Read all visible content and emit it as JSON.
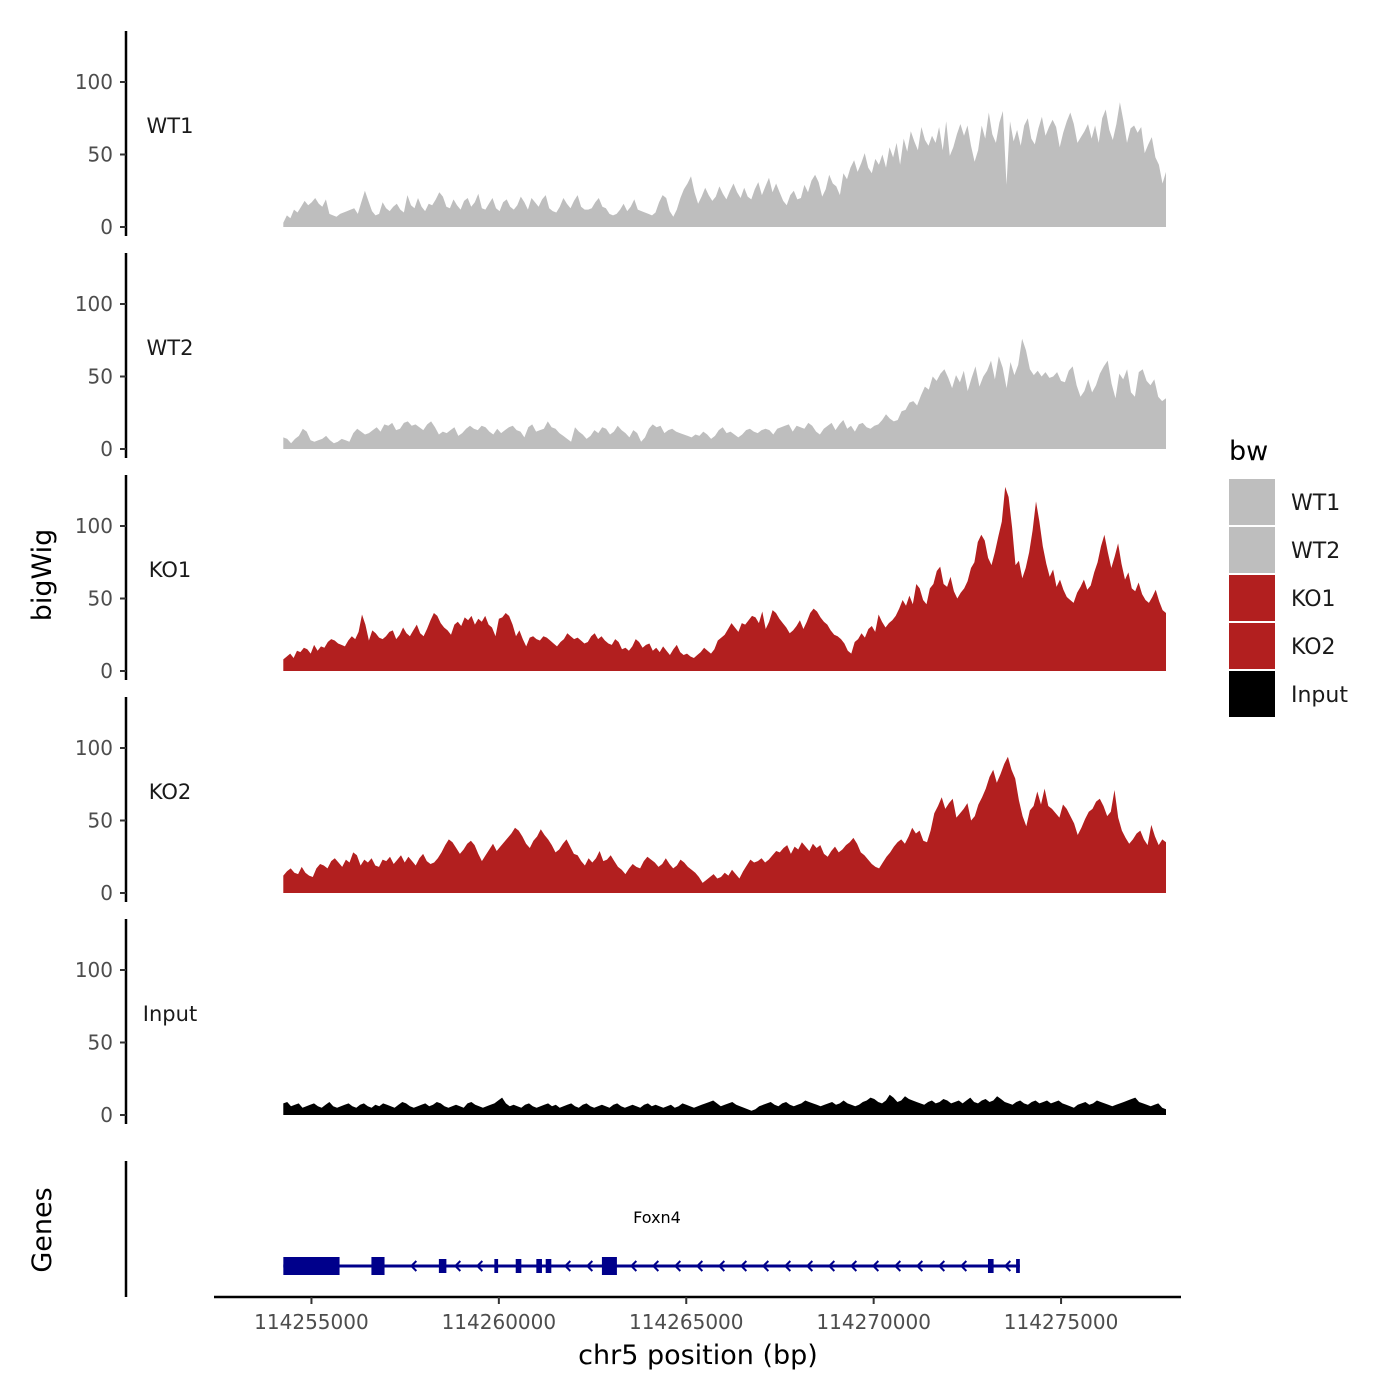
{
  "chart_data": {
    "type": "area",
    "title": "",
    "ylabel": "bigWig",
    "xlabel": "chr5 position (bp)",
    "gene_panel_label": "Genes",
    "xlim": [
      114252400,
      114278200
    ],
    "data_range": [
      114254250,
      114277800
    ],
    "ylim": [
      0,
      130
    ],
    "yticks": [
      0,
      50,
      100
    ],
    "xticks": [
      114255000,
      114260000,
      114265000,
      114270000,
      114275000
    ],
    "xtick_labels": [
      "114255000",
      "114260000",
      "114265000",
      "114270000",
      "114275000"
    ],
    "legend": {
      "title": "bw",
      "position": "right",
      "entries": [
        {
          "name": "WT1",
          "color": "#bebebe"
        },
        {
          "name": "WT2",
          "color": "#bebebe"
        },
        {
          "name": "KO1",
          "color": "#b21f1f"
        },
        {
          "name": "KO2",
          "color": "#b21f1f"
        },
        {
          "name": "Input",
          "color": "#000000"
        }
      ]
    },
    "series": [
      {
        "name": "WT1",
        "color": "#bebebe",
        "values": [
          3,
          8,
          6,
          12,
          10,
          14,
          18,
          15,
          17,
          20,
          16,
          14,
          19,
          9,
          8,
          7,
          9,
          10,
          11,
          12,
          13,
          9,
          17,
          25,
          18,
          11,
          8,
          9,
          17,
          13,
          11,
          14,
          16,
          12,
          10,
          22,
          15,
          13,
          20,
          14,
          11,
          16,
          15,
          19,
          24,
          21,
          14,
          13,
          19,
          15,
          12,
          18,
          20,
          14,
          17,
          23,
          13,
          12,
          16,
          20,
          13,
          11,
          17,
          19,
          14,
          12,
          15,
          21,
          17,
          12,
          20,
          17,
          14,
          19,
          22,
          13,
          11,
          10,
          14,
          20,
          16,
          13,
          18,
          22,
          14,
          12,
          12,
          13,
          17,
          20,
          14,
          13,
          9,
          8,
          9,
          12,
          16,
          11,
          14,
          19,
          12,
          11,
          10,
          9,
          8,
          10,
          17,
          22,
          20,
          11,
          7,
          12,
          20,
          26,
          30,
          35,
          24,
          16,
          21,
          27,
          22,
          18,
          21,
          28,
          23,
          19,
          25,
          30,
          24,
          20,
          27,
          21,
          19,
          26,
          31,
          22,
          28,
          34,
          24,
          30,
          24,
          18,
          15,
          22,
          25,
          19,
          20,
          29,
          24,
          32,
          36,
          31,
          21,
          26,
          36,
          30,
          28,
          22,
          37,
          33,
          41,
          46,
          38,
          44,
          51,
          41,
          37,
          47,
          43,
          50,
          41,
          55,
          48,
          58,
          43,
          61,
          52,
          66,
          59,
          53,
          69,
          60,
          56,
          63,
          58,
          69,
          53,
          73,
          49,
          55,
          64,
          71,
          63,
          70,
          56,
          45,
          53,
          70,
          61,
          79,
          64,
          58,
          72,
          80,
          29,
          73,
          59,
          67,
          56,
          70,
          75,
          61,
          57,
          68,
          76,
          63,
          69,
          74,
          69,
          55,
          65,
          73,
          79,
          71,
          58,
          62,
          66,
          71,
          61,
          70,
          58,
          75,
          81,
          67,
          60,
          71,
          86,
          73,
          58,
          68,
          70,
          65,
          69,
          51,
          57,
          62,
          48,
          43,
          30,
          38
        ]
      },
      {
        "name": "WT2",
        "color": "#bebebe",
        "values": [
          8,
          7,
          4,
          7,
          9,
          14,
          12,
          6,
          5,
          6,
          7,
          9,
          6,
          4,
          5,
          7,
          6,
          5,
          11,
          14,
          12,
          10,
          11,
          13,
          15,
          12,
          17,
          16,
          18,
          13,
          14,
          18,
          19,
          16,
          17,
          15,
          13,
          17,
          19,
          15,
          10,
          12,
          11,
          13,
          15,
          9,
          11,
          14,
          16,
          14,
          13,
          16,
          15,
          12,
          10,
          14,
          11,
          13,
          15,
          16,
          13,
          12,
          8,
          15,
          17,
          12,
          13,
          14,
          19,
          15,
          14,
          11,
          9,
          7,
          5,
          15,
          12,
          10,
          7,
          9,
          13,
          11,
          15,
          14,
          10,
          12,
          16,
          13,
          11,
          8,
          13,
          11,
          5,
          8,
          14,
          17,
          15,
          16,
          11,
          13,
          14,
          12,
          11,
          10,
          9,
          8,
          10,
          9,
          12,
          10,
          7,
          9,
          13,
          15,
          11,
          12,
          10,
          8,
          10,
          13,
          14,
          12,
          11,
          13,
          14,
          13,
          10,
          14,
          15,
          16,
          17,
          12,
          16,
          15,
          14,
          18,
          16,
          12,
          10,
          14,
          16,
          18,
          13,
          17,
          20,
          14,
          16,
          12,
          17,
          18,
          15,
          14,
          16,
          17,
          20,
          24,
          21,
          19,
          20,
          26,
          27,
          32,
          33,
          30,
          37,
          43,
          41,
          50,
          47,
          52,
          55,
          49,
          42,
          51,
          46,
          54,
          40,
          49,
          57,
          43,
          50,
          54,
          61,
          48,
          64,
          56,
          42,
          60,
          51,
          58,
          76,
          68,
          55,
          51,
          54,
          50,
          53,
          49,
          50,
          53,
          47,
          46,
          54,
          57,
          44,
          36,
          40,
          48,
          39,
          44,
          52,
          57,
          61,
          45,
          35,
          52,
          48,
          55,
          39,
          36,
          53,
          55,
          47,
          44,
          48,
          36,
          33,
          35
        ]
      },
      {
        "name": "KO1",
        "color": "#b21f1f",
        "values": [
          8,
          10,
          12,
          9,
          14,
          13,
          16,
          15,
          12,
          18,
          14,
          17,
          16,
          20,
          22,
          21,
          19,
          18,
          17,
          21,
          24,
          22,
          27,
          39,
          32,
          21,
          28,
          26,
          23,
          22,
          24,
          27,
          28,
          22,
          25,
          30,
          26,
          24,
          28,
          32,
          26,
          24,
          29,
          35,
          40,
          38,
          33,
          30,
          28,
          25,
          32,
          34,
          31,
          37,
          35,
          38,
          32,
          36,
          34,
          38,
          32,
          30,
          24,
          36,
          37,
          40,
          38,
          32,
          24,
          28,
          22,
          17,
          23,
          24,
          22,
          21,
          24,
          23,
          21,
          19,
          17,
          20,
          22,
          26,
          24,
          22,
          23,
          21,
          19,
          20,
          24,
          26,
          22,
          24,
          21,
          19,
          18,
          22,
          20,
          15,
          16,
          14,
          17,
          22,
          20,
          16,
          18,
          19,
          14,
          16,
          13,
          17,
          14,
          11,
          15,
          18,
          13,
          11,
          12,
          10,
          9,
          11,
          13,
          16,
          14,
          12,
          15,
          21,
          23,
          25,
          29,
          33,
          30,
          27,
          33,
          32,
          35,
          38,
          37,
          33,
          41,
          29,
          34,
          42,
          40,
          36,
          33,
          30,
          26,
          28,
          31,
          35,
          29,
          34,
          40,
          43,
          41,
          37,
          34,
          32,
          28,
          25,
          24,
          22,
          19,
          14,
          12,
          20,
          22,
          26,
          23,
          29,
          31,
          27,
          39,
          34,
          30,
          33,
          35,
          38,
          43,
          49,
          45,
          52,
          46,
          60,
          57,
          49,
          46,
          57,
          60,
          69,
          72,
          60,
          58,
          65,
          55,
          50,
          54,
          57,
          62,
          71,
          75,
          89,
          94,
          90,
          78,
          73,
          82,
          93,
          103,
          127,
          120,
          99,
          73,
          76,
          64,
          71,
          82,
          97,
          117,
          103,
          86,
          74,
          65,
          70,
          58,
          63,
          56,
          51,
          49,
          47,
          54,
          58,
          63,
          56,
          59,
          68,
          75,
          86,
          94,
          82,
          71,
          79,
          88,
          74,
          63,
          68,
          57,
          55,
          61,
          53,
          49,
          47,
          51,
          56,
          48,
          42,
          40
        ]
      },
      {
        "name": "KO2",
        "color": "#b21f1f",
        "values": [
          12,
          15,
          17,
          14,
          13,
          18,
          14,
          12,
          11,
          17,
          20,
          19,
          17,
          22,
          24,
          21,
          18,
          23,
          21,
          28,
          26,
          19,
          23,
          21,
          24,
          19,
          18,
          23,
          22,
          25,
          20,
          23,
          26,
          21,
          25,
          22,
          19,
          24,
          27,
          22,
          20,
          21,
          24,
          28,
          33,
          37,
          35,
          31,
          27,
          30,
          34,
          36,
          33,
          27,
          22,
          26,
          30,
          34,
          29,
          32,
          35,
          38,
          41,
          45,
          43,
          39,
          34,
          31,
          36,
          39,
          44,
          40,
          37,
          33,
          28,
          30,
          34,
          37,
          32,
          27,
          26,
          22,
          19,
          24,
          21,
          24,
          29,
          22,
          23,
          26,
          22,
          18,
          16,
          13,
          17,
          20,
          18,
          17,
          22,
          25,
          23,
          21,
          18,
          20,
          24,
          20,
          17,
          19,
          23,
          21,
          18,
          16,
          14,
          11,
          7,
          9,
          11,
          13,
          10,
          11,
          14,
          12,
          16,
          13,
          10,
          15,
          19,
          23,
          21,
          22,
          24,
          21,
          23,
          26,
          29,
          28,
          31,
          33,
          27,
          32,
          30,
          35,
          32,
          29,
          34,
          31,
          33,
          27,
          25,
          29,
          32,
          28,
          30,
          33,
          35,
          38,
          34,
          28,
          26,
          23,
          20,
          18,
          17,
          21,
          25,
          28,
          32,
          35,
          37,
          34,
          39,
          45,
          41,
          43,
          36,
          35,
          43,
          55,
          60,
          66,
          58,
          62,
          65,
          52,
          55,
          58,
          62,
          50,
          53,
          61,
          66,
          72,
          80,
          85,
          76,
          82,
          89,
          94,
          85,
          79,
          64,
          53,
          46,
          57,
          60,
          70,
          61,
          72,
          60,
          58,
          55,
          52,
          61,
          58,
          53,
          48,
          40,
          45,
          51,
          56,
          58,
          63,
          65,
          60,
          53,
          56,
          71,
          52,
          43,
          38,
          34,
          37,
          41,
          43,
          37,
          33,
          47,
          39,
          33,
          37,
          35
        ]
      },
      {
        "name": "Input",
        "color": "#000000",
        "values": [
          8,
          9,
          6,
          7,
          8,
          5,
          6,
          7,
          8,
          6,
          5,
          7,
          9,
          6,
          5,
          6,
          7,
          8,
          6,
          5,
          7,
          8,
          6,
          5,
          7,
          6,
          8,
          7,
          6,
          5,
          7,
          9,
          8,
          6,
          5,
          6,
          7,
          8,
          6,
          7,
          9,
          8,
          6,
          5,
          6,
          7,
          6,
          5,
          8,
          9,
          7,
          6,
          5,
          6,
          7,
          8,
          10,
          12,
          8,
          6,
          7,
          6,
          5,
          7,
          8,
          6,
          5,
          6,
          7,
          8,
          6,
          7,
          5,
          6,
          7,
          8,
          6,
          5,
          7,
          8,
          6,
          5,
          6,
          7,
          6,
          5,
          7,
          8,
          6,
          5,
          6,
          7,
          6,
          5,
          7,
          8,
          6,
          7,
          6,
          5,
          6,
          7,
          5,
          6,
          8,
          7,
          6,
          5,
          6,
          7,
          8,
          9,
          10,
          8,
          6,
          7,
          8,
          9,
          7,
          6,
          5,
          4,
          3,
          4,
          6,
          7,
          8,
          9,
          7,
          6,
          8,
          9,
          7,
          6,
          7,
          8,
          10,
          9,
          8,
          7,
          6,
          7,
          8,
          9,
          7,
          8,
          10,
          8,
          7,
          6,
          7,
          9,
          10,
          12,
          11,
          9,
          8,
          10,
          14,
          12,
          9,
          10,
          13,
          11,
          10,
          9,
          8,
          7,
          9,
          10,
          8,
          9,
          11,
          10,
          8,
          9,
          10,
          8,
          10,
          12,
          9,
          8,
          10,
          11,
          9,
          10,
          13,
          11,
          9,
          8,
          7,
          9,
          10,
          8,
          7,
          9,
          10,
          8,
          9,
          10,
          8,
          9,
          10,
          8,
          7,
          6,
          5,
          7,
          8,
          9,
          7,
          8,
          10,
          9,
          8,
          7,
          6,
          7,
          8,
          9,
          10,
          11,
          12,
          9,
          8,
          7,
          6,
          7,
          8,
          5,
          4
        ]
      }
    ],
    "gene": {
      "name": "Foxn4",
      "strand": "-",
      "color": "#00008b",
      "start": 114254250,
      "end": 114273900,
      "exons": [
        {
          "start": 114254250,
          "end": 114255750,
          "size": "large"
        },
        {
          "start": 114256600,
          "end": 114256950,
          "size": "large"
        },
        {
          "start": 114258400,
          "end": 114258600,
          "size": "medium"
        },
        {
          "start": 114259880,
          "end": 114259980,
          "size": "medium"
        },
        {
          "start": 114260450,
          "end": 114260600,
          "size": "medium"
        },
        {
          "start": 114261000,
          "end": 114261150,
          "size": "medium"
        },
        {
          "start": 114261250,
          "end": 114261400,
          "size": "medium"
        },
        {
          "start": 114262750,
          "end": 114263150,
          "size": "large"
        },
        {
          "start": 114273050,
          "end": 114273200,
          "size": "medium"
        },
        {
          "start": 114273800,
          "end": 114273900,
          "size": "medium"
        }
      ]
    }
  }
}
